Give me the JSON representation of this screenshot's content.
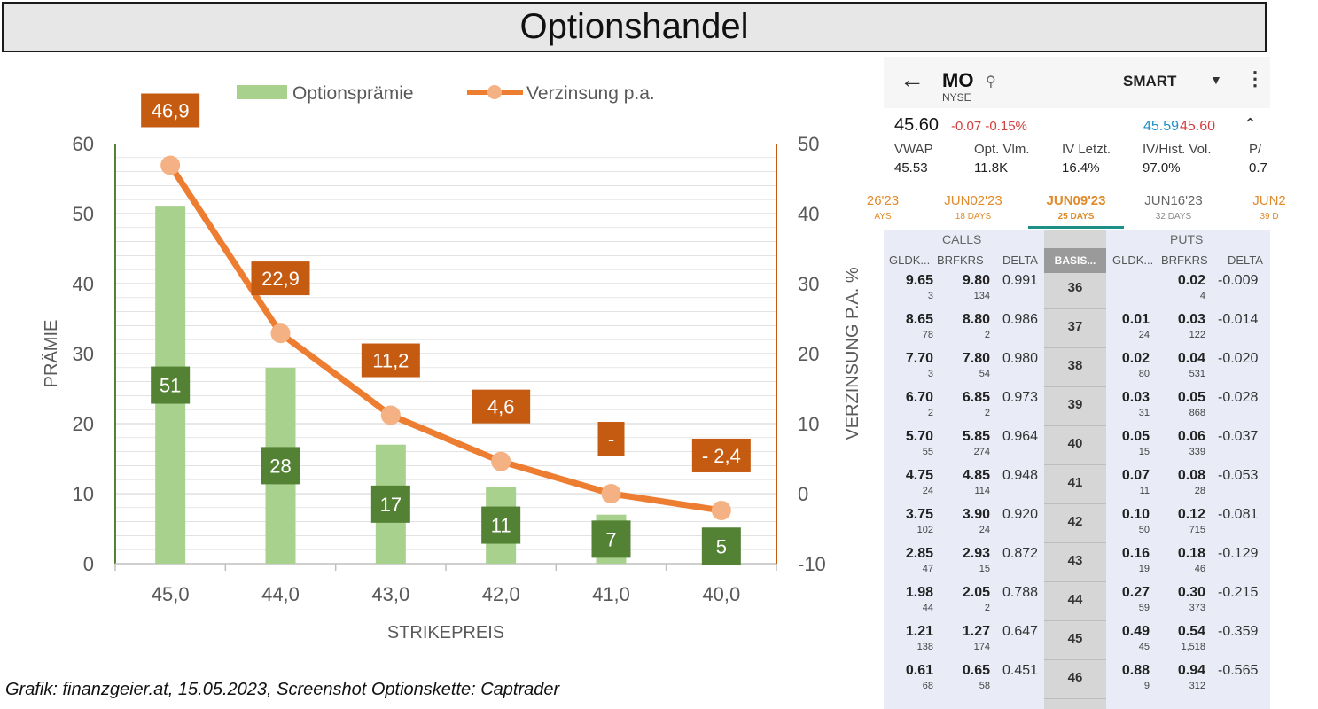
{
  "title": "Optionshandel",
  "caption": "Grafik: finanzgeier.at, 15.05.2023, Screenshot Optionskette: Captrader",
  "colors": {
    "bar": "#a9d18e",
    "bar_label_bg": "#548235",
    "line": "#ed7d31",
    "marker": "#f4b183",
    "line_label_bg": "#c55a11",
    "left_axis": "#548235",
    "right_axis": "#c55a11",
    "grid": "#d9d9d9"
  },
  "chart_data": {
    "type": "bar",
    "categories": [
      "45,0",
      "44,0",
      "43,0",
      "42,0",
      "41,0",
      "40,0"
    ],
    "series": [
      {
        "name": "Optionsprämie",
        "type": "bar",
        "axis": "left",
        "values": [
          51,
          28,
          17,
          11,
          7,
          5
        ],
        "labels": [
          "51",
          "28",
          "17",
          "11",
          "7",
          "5"
        ]
      },
      {
        "name": "Verzinsung p.a.",
        "type": "line",
        "axis": "right",
        "values": [
          46.9,
          22.9,
          11.2,
          4.6,
          0,
          -2.4
        ],
        "labels": [
          "46,9",
          "22,9",
          "11,2",
          "4,6",
          "-",
          "- 2,4"
        ]
      }
    ],
    "xlabel": "STRIKEPREIS",
    "ylabel": "PRÄMIE",
    "y2label": "VERZINSUNG P.A. %",
    "ylim": [
      0,
      60
    ],
    "y_ticks": [
      0,
      10,
      20,
      30,
      40,
      50,
      60
    ],
    "y2lim": [
      -10,
      50
    ],
    "y2_ticks": [
      -10,
      0,
      10,
      20,
      30,
      40,
      50
    ],
    "grid": true,
    "legend_position": "top"
  },
  "phone": {
    "symbol": "MO",
    "exchange": "NYSE",
    "route": "SMART",
    "last": "45.60",
    "change": "-0.07 -0.15%",
    "bid": "45.59",
    "ask": "45.60",
    "stats": [
      {
        "label": "VWAP",
        "value": "45.53"
      },
      {
        "label": "Opt. Vlm.",
        "value": "11.8K"
      },
      {
        "label": "IV Letzt.",
        "value": "16.4%"
      },
      {
        "label": "IV/Hist. Vol.",
        "value": "97.0%"
      },
      {
        "label": "P/",
        "value": "0.7"
      }
    ],
    "expiries": [
      {
        "label": "26'23",
        "days": "AYS"
      },
      {
        "label": "JUN02'23",
        "days": "18 DAYS"
      },
      {
        "label": "JUN09'23",
        "days": "25 DAYS"
      },
      {
        "label": "JUN16'23",
        "days": "32 DAYS"
      },
      {
        "label": "JUN2",
        "days": "39 D"
      }
    ],
    "calls_label": "CALLS",
    "puts_label": "PUTS",
    "columns": {
      "bid": "GLDK...",
      "ask": "BRFKRS",
      "delta": "DELTA",
      "basis": "BASIS..."
    },
    "rows": [
      {
        "strike": "36",
        "c_bid": "9.65",
        "c_bid_sz": "3",
        "c_ask": "9.80",
        "c_ask_sz": "134",
        "c_delta": "0.991",
        "p_bid": "",
        "p_bid_sz": "",
        "p_ask": "0.02",
        "p_ask_sz": "4",
        "p_delta": "-0.009"
      },
      {
        "strike": "37",
        "c_bid": "8.65",
        "c_bid_sz": "78",
        "c_ask": "8.80",
        "c_ask_sz": "2",
        "c_delta": "0.986",
        "p_bid": "0.01",
        "p_bid_sz": "24",
        "p_ask": "0.03",
        "p_ask_sz": "122",
        "p_delta": "-0.014"
      },
      {
        "strike": "38",
        "c_bid": "7.70",
        "c_bid_sz": "3",
        "c_ask": "7.80",
        "c_ask_sz": "54",
        "c_delta": "0.980",
        "p_bid": "0.02",
        "p_bid_sz": "80",
        "p_ask": "0.04",
        "p_ask_sz": "531",
        "p_delta": "-0.020"
      },
      {
        "strike": "39",
        "c_bid": "6.70",
        "c_bid_sz": "2",
        "c_ask": "6.85",
        "c_ask_sz": "2",
        "c_delta": "0.973",
        "p_bid": "0.03",
        "p_bid_sz": "31",
        "p_ask": "0.05",
        "p_ask_sz": "868",
        "p_delta": "-0.028"
      },
      {
        "strike": "40",
        "c_bid": "5.70",
        "c_bid_sz": "55",
        "c_ask": "5.85",
        "c_ask_sz": "274",
        "c_delta": "0.964",
        "p_bid": "0.05",
        "p_bid_sz": "15",
        "p_ask": "0.06",
        "p_ask_sz": "339",
        "p_delta": "-0.037"
      },
      {
        "strike": "41",
        "c_bid": "4.75",
        "c_bid_sz": "24",
        "c_ask": "4.85",
        "c_ask_sz": "114",
        "c_delta": "0.948",
        "p_bid": "0.07",
        "p_bid_sz": "11",
        "p_ask": "0.08",
        "p_ask_sz": "28",
        "p_delta": "-0.053"
      },
      {
        "strike": "42",
        "c_bid": "3.75",
        "c_bid_sz": "102",
        "c_ask": "3.90",
        "c_ask_sz": "24",
        "c_delta": "0.920",
        "p_bid": "0.10",
        "p_bid_sz": "50",
        "p_ask": "0.12",
        "p_ask_sz": "715",
        "p_delta": "-0.081"
      },
      {
        "strike": "43",
        "c_bid": "2.85",
        "c_bid_sz": "47",
        "c_ask": "2.93",
        "c_ask_sz": "15",
        "c_delta": "0.872",
        "p_bid": "0.16",
        "p_bid_sz": "19",
        "p_ask": "0.18",
        "p_ask_sz": "46",
        "p_delta": "-0.129"
      },
      {
        "strike": "44",
        "c_bid": "1.98",
        "c_bid_sz": "44",
        "c_ask": "2.05",
        "c_ask_sz": "2",
        "c_delta": "0.788",
        "p_bid": "0.27",
        "p_bid_sz": "59",
        "p_ask": "0.30",
        "p_ask_sz": "373",
        "p_delta": "-0.215"
      },
      {
        "strike": "45",
        "c_bid": "1.21",
        "c_bid_sz": "138",
        "c_ask": "1.27",
        "c_ask_sz": "174",
        "c_delta": "0.647",
        "p_bid": "0.49",
        "p_bid_sz": "45",
        "p_ask": "0.54",
        "p_ask_sz": "1,518",
        "p_delta": "-0.359"
      },
      {
        "strike": "46",
        "c_bid": "0.61",
        "c_bid_sz": "68",
        "c_ask": "0.65",
        "c_ask_sz": "58",
        "c_delta": "0.451",
        "p_bid": "0.88",
        "p_bid_sz": "9",
        "p_ask": "0.94",
        "p_ask_sz": "312",
        "p_delta": "-0.565"
      }
    ]
  }
}
